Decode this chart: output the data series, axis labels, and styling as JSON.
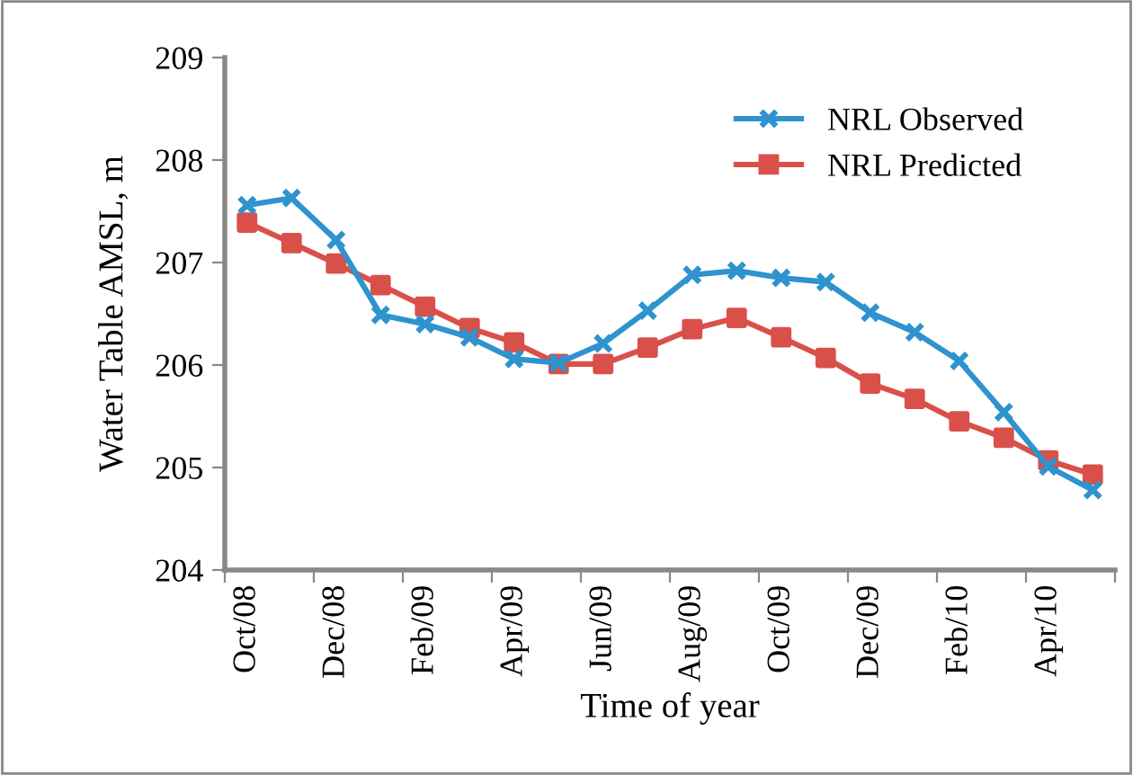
{
  "chart_data": {
    "type": "line",
    "xlabel": "Time of year",
    "ylabel": "Water Table AMSL, m",
    "categories": [
      "Oct/08",
      null,
      "Dec/08",
      null,
      "Feb/09",
      null,
      "Apr/09",
      null,
      "Jun/09",
      null,
      "Aug/09",
      null,
      "Oct/09",
      null,
      "Dec/09",
      null,
      "Feb/10",
      null,
      "Apr/10",
      null
    ],
    "series": [
      {
        "name": "NRL Observed",
        "color": "#2e93cf",
        "marker": "cross",
        "values": [
          207.56,
          207.63,
          207.22,
          206.49,
          206.4,
          206.27,
          206.06,
          206.02,
          206.21,
          206.53,
          206.88,
          206.92,
          206.85,
          206.81,
          206.51,
          206.32,
          206.04,
          205.54,
          205.01,
          204.78
        ]
      },
      {
        "name": "NRL Predicted",
        "color": "#d9504a",
        "marker": "square",
        "values": [
          207.39,
          207.19,
          206.99,
          206.78,
          206.57,
          206.36,
          206.22,
          206.01,
          206.01,
          206.17,
          206.35,
          206.46,
          206.27,
          206.07,
          205.82,
          205.67,
          205.45,
          205.29,
          205.07,
          204.93
        ]
      }
    ],
    "ylim": [
      204,
      209
    ],
    "yticks": [
      204,
      205,
      206,
      207,
      208,
      209
    ],
    "grid": false,
    "legend": "top right",
    "line_style": "solid"
  }
}
